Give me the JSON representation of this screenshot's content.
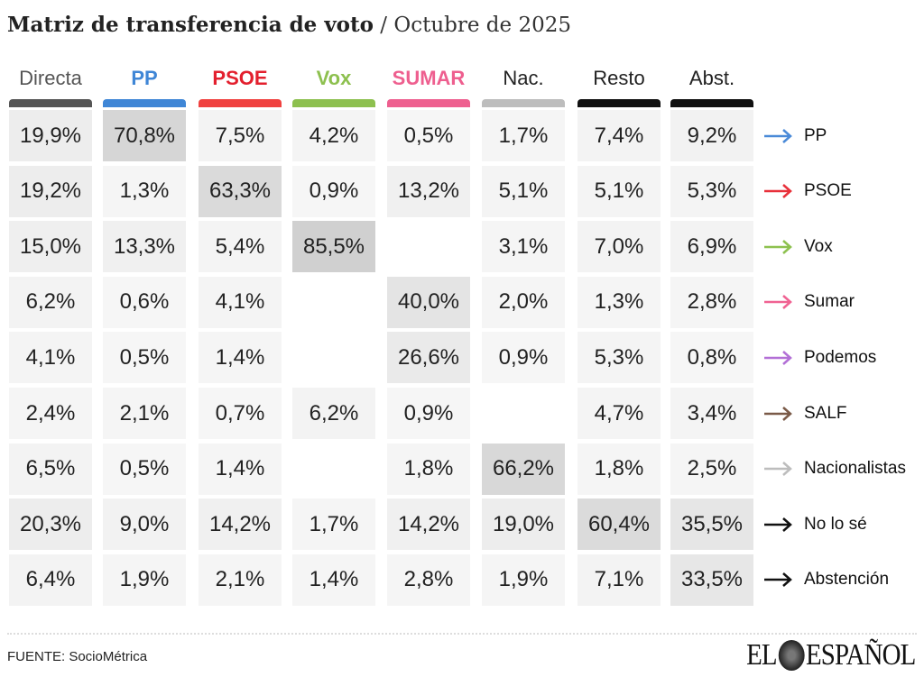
{
  "title": {
    "main": "Matriz de transferencia de voto",
    "sep": " / ",
    "sub": "Octubre de 2025"
  },
  "chart_data": {
    "type": "table",
    "title": "Matriz de transferencia de voto / Octubre de 2025",
    "columns": [
      {
        "label": "Directa",
        "color": "#555555",
        "bar": "#555555"
      },
      {
        "label": "PP",
        "color": "#3f86d6",
        "bar": "#3f86d6"
      },
      {
        "label": "PSOE",
        "color": "#e3202e",
        "bar": "#f0413f"
      },
      {
        "label": "Vox",
        "color": "#8dc04f",
        "bar": "#8dc04f"
      },
      {
        "label": "SUMAR",
        "color": "#ee5f8f",
        "bar": "#ee5f8f"
      },
      {
        "label": "Nac.",
        "color": "#222222",
        "bar": "#bdbdbd"
      },
      {
        "label": "Resto",
        "color": "#222222",
        "bar": "#111111"
      },
      {
        "label": "Abst.",
        "color": "#222222",
        "bar": "#111111"
      }
    ],
    "rows": [
      {
        "label": "PP",
        "arrow": "#4a8ad8",
        "values": [
          "19,9%",
          "70,8%",
          "7,5%",
          "4,2%",
          "0,5%",
          "1,7%",
          "7,4%",
          "9,2%"
        ]
      },
      {
        "label": "PSOE",
        "arrow": "#e8303a",
        "values": [
          "19,2%",
          "1,3%",
          "63,3%",
          "0,9%",
          "13,2%",
          "5,1%",
          "5,1%",
          "5,3%"
        ]
      },
      {
        "label": "Vox",
        "arrow": "#8dc14f",
        "values": [
          "15,0%",
          "13,3%",
          "5,4%",
          "85,5%",
          "",
          "3,1%",
          "7,0%",
          "6,9%"
        ]
      },
      {
        "label": "Sumar",
        "arrow": "#f06292",
        "values": [
          "6,2%",
          "0,6%",
          "4,1%",
          "",
          "40,0%",
          "2,0%",
          "1,3%",
          "2,8%"
        ]
      },
      {
        "label": "Podemos",
        "arrow": "#b26fd6",
        "values": [
          "4,1%",
          "0,5%",
          "1,4%",
          "",
          "26,6%",
          "0,9%",
          "5,3%",
          "0,8%"
        ]
      },
      {
        "label": "SALF",
        "arrow": "#7a5a48",
        "values": [
          "2,4%",
          "2,1%",
          "0,7%",
          "6,2%",
          "0,9%",
          "",
          "4,7%",
          "3,4%"
        ]
      },
      {
        "label": "Nacionalistas",
        "arrow": "#bdbdbd",
        "values": [
          "6,5%",
          "0,5%",
          "1,4%",
          "",
          "1,8%",
          "66,2%",
          "1,8%",
          "2,5%"
        ]
      },
      {
        "label": "No lo sé",
        "arrow": "#111111",
        "values": [
          "20,3%",
          "9,0%",
          "14,2%",
          "1,7%",
          "14,2%",
          "19,0%",
          "60,4%",
          "35,5%"
        ]
      },
      {
        "label": "Abstención",
        "arrow": "#111111",
        "values": [
          "6,4%",
          "1,9%",
          "2,1%",
          "1,4%",
          "2,8%",
          "1,9%",
          "7,1%",
          "33,5%"
        ]
      }
    ]
  },
  "footer": {
    "source": "FUENTE: SocioMétrica",
    "logo": "EL ESPAÑOL"
  }
}
